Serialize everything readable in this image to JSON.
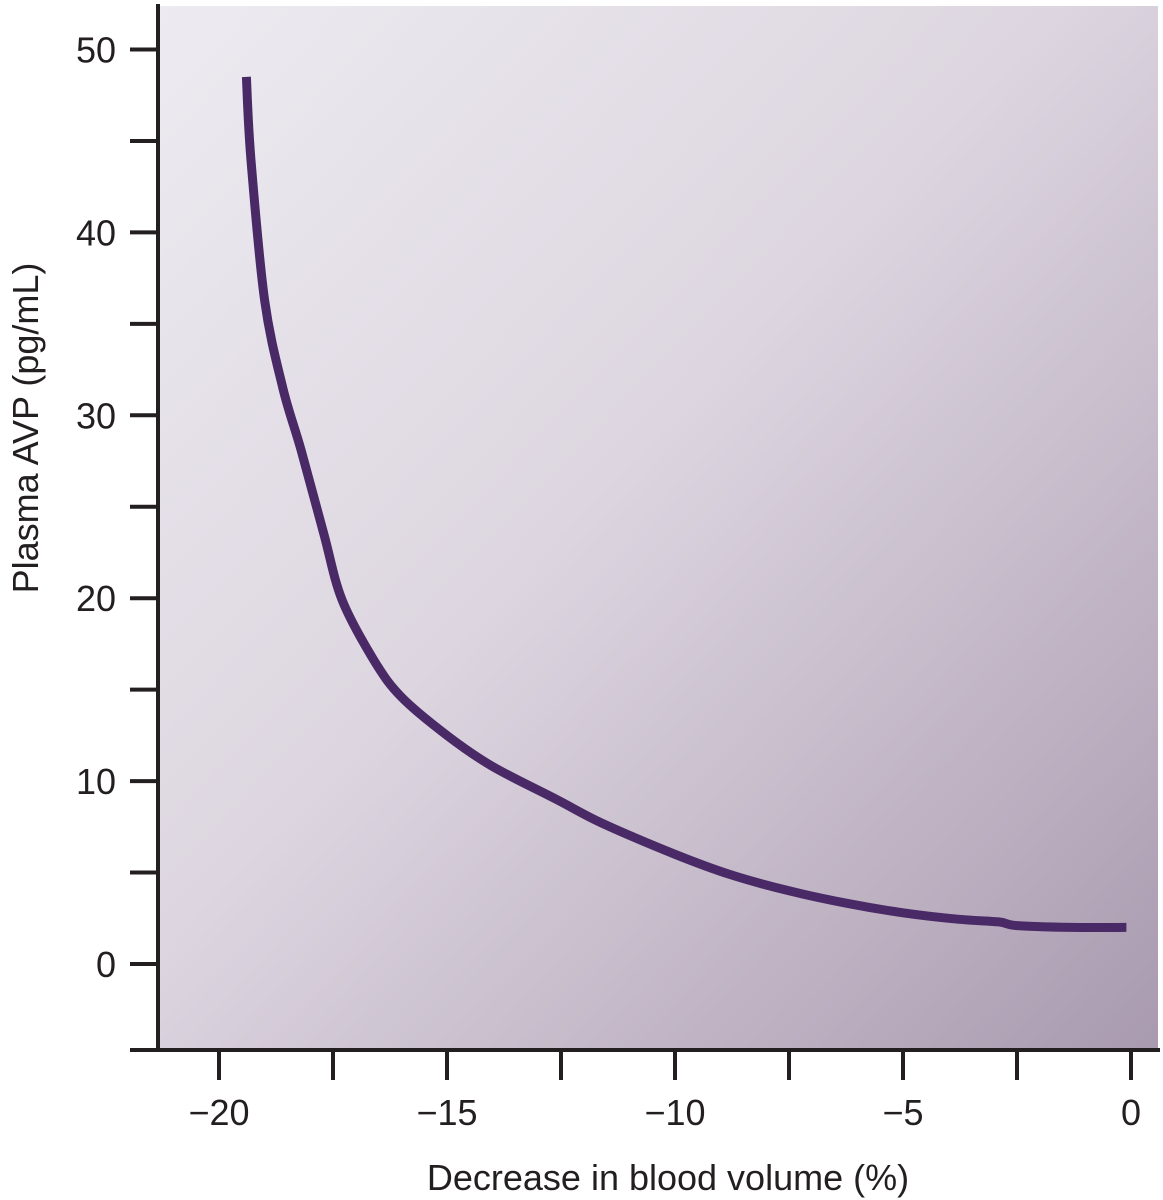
{
  "chart_data": {
    "type": "line",
    "title": "",
    "xlabel": "Decrease in blood volume (%)",
    "ylabel": "Plasma AVP (pg/mL)",
    "xlim": [
      -21.3,
      0.6
    ],
    "ylim": [
      -4.7,
      52.5
    ],
    "x_ticks": [
      -20,
      -15,
      -10,
      -5,
      0
    ],
    "x_tick_labels": [
      "−20",
      "−15",
      "−10",
      "−5",
      "0"
    ],
    "x_minor_ticks": [
      -17.5,
      -12.5,
      -7.5,
      -2.5
    ],
    "y_ticks": [
      0,
      10,
      20,
      30,
      40,
      50
    ],
    "y_tick_labels": [
      "0",
      "10",
      "20",
      "30",
      "40",
      "50"
    ],
    "y_minor_ticks": [
      5,
      15,
      25,
      35,
      45
    ],
    "grid": false,
    "legend": null,
    "series": [
      {
        "name": "Plasma AVP",
        "color": "#4a2a66",
        "x": [
          -19.4,
          -19.3,
          -19.0,
          -18.6,
          -18.2,
          -17.7,
          -17.3,
          -16.6,
          -16.0,
          -15.0,
          -14.0,
          -12.6,
          -11.6,
          -10.0,
          -8.8,
          -7.5,
          -6.2,
          -5.0,
          -3.8,
          -2.9,
          -2.5,
          -1.3,
          -0.1
        ],
        "y": [
          48.5,
          44.0,
          36.3,
          31.5,
          28.1,
          23.5,
          19.9,
          16.6,
          14.6,
          12.5,
          10.8,
          9.0,
          7.7,
          6.0,
          4.9,
          4.0,
          3.3,
          2.8,
          2.45,
          2.3,
          2.1,
          2.0,
          2.0
        ]
      }
    ],
    "background": {
      "gradient_start": "#edebf1",
      "gradient_end": "#a99aaf"
    }
  }
}
